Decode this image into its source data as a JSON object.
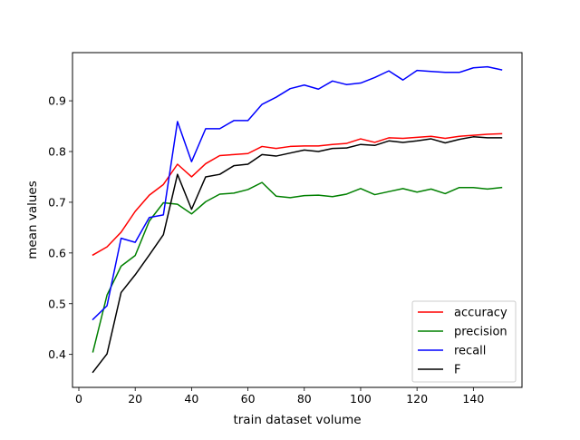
{
  "chart_data": {
    "type": "line",
    "xlabel": "train dataset volume",
    "ylabel": "mean values",
    "xlim": [
      -2.25,
      157.25
    ],
    "ylim": [
      0.335,
      0.995
    ],
    "xticks": [
      0,
      20,
      40,
      60,
      80,
      100,
      120,
      140
    ],
    "yticks": [
      0.4,
      0.5,
      0.6,
      0.7,
      0.8,
      0.9
    ],
    "ytick_labels": [
      "0.4",
      "0.5",
      "0.6",
      "0.7",
      "0.8",
      "0.9"
    ],
    "grid": false,
    "legend_position": "lower-right",
    "x": [
      5,
      10,
      15,
      20,
      25,
      30,
      35,
      40,
      45,
      50,
      55,
      60,
      65,
      70,
      75,
      80,
      85,
      90,
      95,
      100,
      105,
      110,
      115,
      120,
      125,
      130,
      135,
      140,
      145,
      150
    ],
    "series": [
      {
        "name": "accuracy",
        "color": "#ff0000",
        "values": [
          0.596,
          0.612,
          0.641,
          0.682,
          0.714,
          0.735,
          0.775,
          0.75,
          0.776,
          0.792,
          0.794,
          0.796,
          0.81,
          0.806,
          0.81,
          0.811,
          0.811,
          0.814,
          0.816,
          0.825,
          0.818,
          0.827,
          0.826,
          0.828,
          0.83,
          0.826,
          0.83,
          0.832,
          0.834,
          0.835
        ]
      },
      {
        "name": "precision",
        "color": "#008000",
        "values": [
          0.405,
          0.517,
          0.574,
          0.595,
          0.663,
          0.699,
          0.696,
          0.677,
          0.701,
          0.716,
          0.718,
          0.725,
          0.739,
          0.712,
          0.709,
          0.713,
          0.714,
          0.711,
          0.716,
          0.727,
          0.715,
          0.721,
          0.727,
          0.72,
          0.726,
          0.717,
          0.729,
          0.729,
          0.726,
          0.729
        ]
      },
      {
        "name": "recall",
        "color": "#0000ff",
        "values": [
          0.469,
          0.496,
          0.629,
          0.621,
          0.67,
          0.675,
          0.859,
          0.78,
          0.845,
          0.845,
          0.861,
          0.861,
          0.893,
          0.907,
          0.924,
          0.931,
          0.923,
          0.939,
          0.932,
          0.935,
          0.946,
          0.959,
          0.941,
          0.96,
          0.958,
          0.956,
          0.956,
          0.965,
          0.967,
          0.961
        ]
      },
      {
        "name": "F",
        "color": "#000000",
        "values": [
          0.365,
          0.401,
          0.522,
          0.557,
          0.596,
          0.636,
          0.755,
          0.686,
          0.75,
          0.755,
          0.772,
          0.775,
          0.794,
          0.791,
          0.797,
          0.803,
          0.8,
          0.806,
          0.807,
          0.814,
          0.812,
          0.821,
          0.818,
          0.821,
          0.825,
          0.817,
          0.824,
          0.829,
          0.827,
          0.827
        ]
      }
    ]
  }
}
